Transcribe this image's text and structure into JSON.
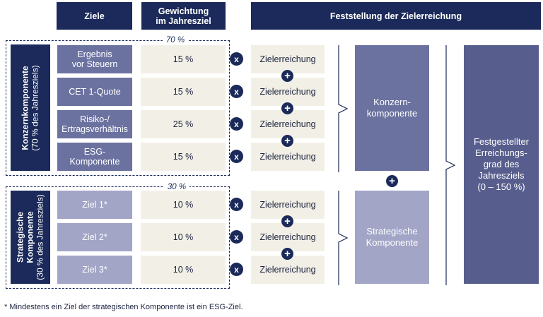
{
  "header": {
    "ziele": "Ziele",
    "gewichtung_line1": "Gewichtung",
    "gewichtung_line2": "im Jahresziel",
    "feststellung": "Feststellung der Zielerreichung"
  },
  "konzern": {
    "percent": "70 %",
    "label_line1": "Konzernkomponente",
    "label_line2": "(70 % des Jahresziels)",
    "goals": [
      {
        "line1": "Ergebnis",
        "line2": "vor Steuern",
        "weight": "15 %"
      },
      {
        "line1": "CET 1-Quote",
        "line2": "",
        "weight": "15 %"
      },
      {
        "line1": "Risiko-/",
        "line2": "Ertragsverhältnis",
        "weight": "25 %"
      },
      {
        "line1": "ESG-",
        "line2": "Komponente",
        "weight": "15 %"
      }
    ],
    "box_line1": "Konzern-",
    "box_line2": "komponente"
  },
  "strategic": {
    "percent": "30 %",
    "label_line1": "Strategische",
    "label_line2": "Komponente",
    "label_line3": "(30 % des Jahresziels)",
    "goals": [
      {
        "line1": "Ziel 1*",
        "weight": "10 %"
      },
      {
        "line1": "Ziel 2*",
        "weight": "10 %"
      },
      {
        "line1": "Ziel 3*",
        "weight": "10 %"
      }
    ],
    "box_line1": "Strategische",
    "box_line2": "Komponente"
  },
  "zielerreichung_label": "Zielerreichung",
  "times_symbol": "x",
  "plus_symbol": "+",
  "result": {
    "line1": "Festgestellter",
    "line2": "Erreichungs-",
    "line3": "grad des",
    "line4": "Jahresziels",
    "line5": "(0 – 150 %)"
  },
  "footnote": "* Mindestens ein Ziel der strategischen Komponente ist ein ESG-Ziel.",
  "colors": {
    "navy": "#1b2a5a",
    "konzern_goal": "#6b72a0",
    "strategic_goal": "#a2a5c6",
    "cell": "#f2f0e6",
    "result": "#575e8d"
  }
}
